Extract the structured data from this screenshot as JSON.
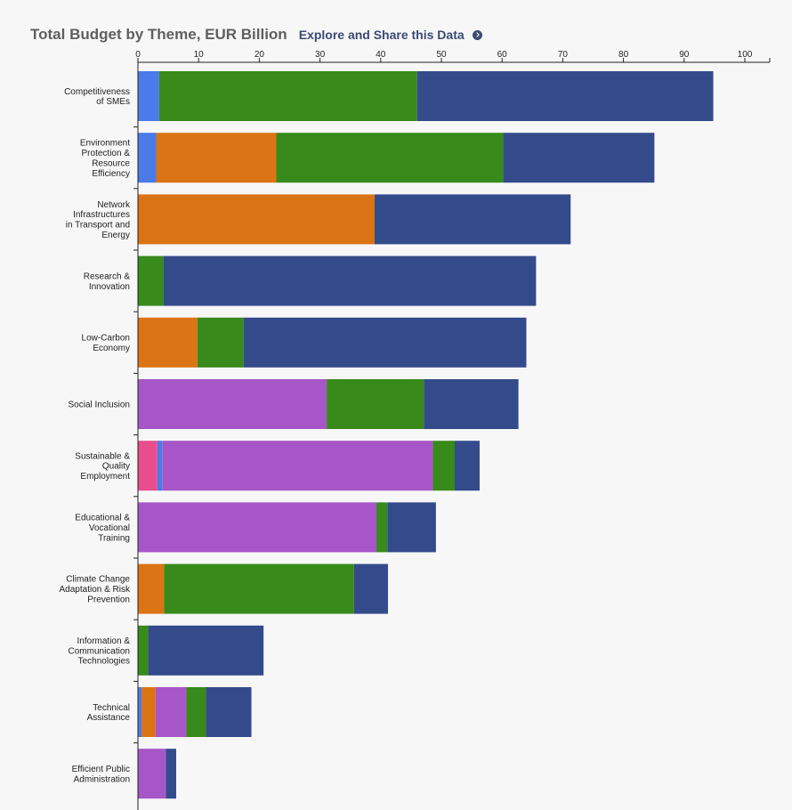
{
  "header": {
    "title": "Total Budget by Theme, EUR Billion",
    "explore_label": "Explore and Share this Data"
  },
  "chart_data": {
    "type": "bar",
    "orientation": "horizontal",
    "stacked": true,
    "title": "Total Budget by Theme, EUR Billion",
    "xlabel": "",
    "ylabel": "",
    "xlim": [
      0,
      103
    ],
    "x_ticks": [
      0,
      10,
      20,
      30,
      40,
      50,
      60,
      70,
      80,
      90,
      100
    ],
    "axis_position": "top",
    "legend": "none",
    "categories": [
      [
        "Competitiveness",
        "of SMEs"
      ],
      [
        "Environment",
        "Protection &",
        "Resource",
        "Efficiency"
      ],
      [
        "Network",
        "Infrastructures",
        "in Transport and",
        "Energy"
      ],
      [
        "Research &",
        "Innovation"
      ],
      [
        "Low-Carbon",
        "Economy"
      ],
      [
        "Social Inclusion"
      ],
      [
        "Sustainable &",
        "Quality",
        "Employment"
      ],
      [
        "Educational &",
        "Vocational",
        "Training"
      ],
      [
        "Climate Change",
        "Adaptation & Risk",
        "Prevention"
      ],
      [
        "Information &",
        "Communication",
        "Technologies"
      ],
      [
        "Technical",
        "Assistance"
      ],
      [
        "Efficient Public",
        "Administration"
      ]
    ],
    "series": [
      {
        "name": "Pink segment",
        "color": "#e94e8c",
        "values": [
          0,
          0,
          0,
          0,
          0,
          0,
          3.2,
          0,
          0,
          0,
          0,
          0
        ]
      },
      {
        "name": "Light blue segment",
        "color": "#4a7be8",
        "values": [
          3.5,
          3.0,
          0,
          0,
          0,
          0,
          0.8,
          0,
          0,
          0,
          0.6,
          0
        ]
      },
      {
        "name": "Orange segment",
        "color": "#db7414",
        "values": [
          0,
          19.8,
          39.0,
          0,
          9.8,
          0,
          0,
          0,
          4.3,
          0,
          2.3,
          0
        ]
      },
      {
        "name": "Purple segment",
        "color": "#a656c7",
        "values": [
          0,
          0,
          0,
          0,
          0,
          31.1,
          44.6,
          39.3,
          0,
          0,
          5.1,
          4.6
        ]
      },
      {
        "name": "Green segment",
        "color": "#388a1a",
        "values": [
          42.5,
          37.4,
          0,
          4.2,
          7.6,
          16.0,
          3.6,
          1.8,
          31.3,
          1.7,
          3.2,
          0
        ]
      },
      {
        "name": "Dark blue segment",
        "color": "#344b8b",
        "values": [
          48.8,
          24.9,
          32.3,
          61.4,
          46.6,
          15.6,
          4.1,
          8.0,
          5.6,
          19.0,
          7.5,
          1.7
        ]
      }
    ]
  }
}
